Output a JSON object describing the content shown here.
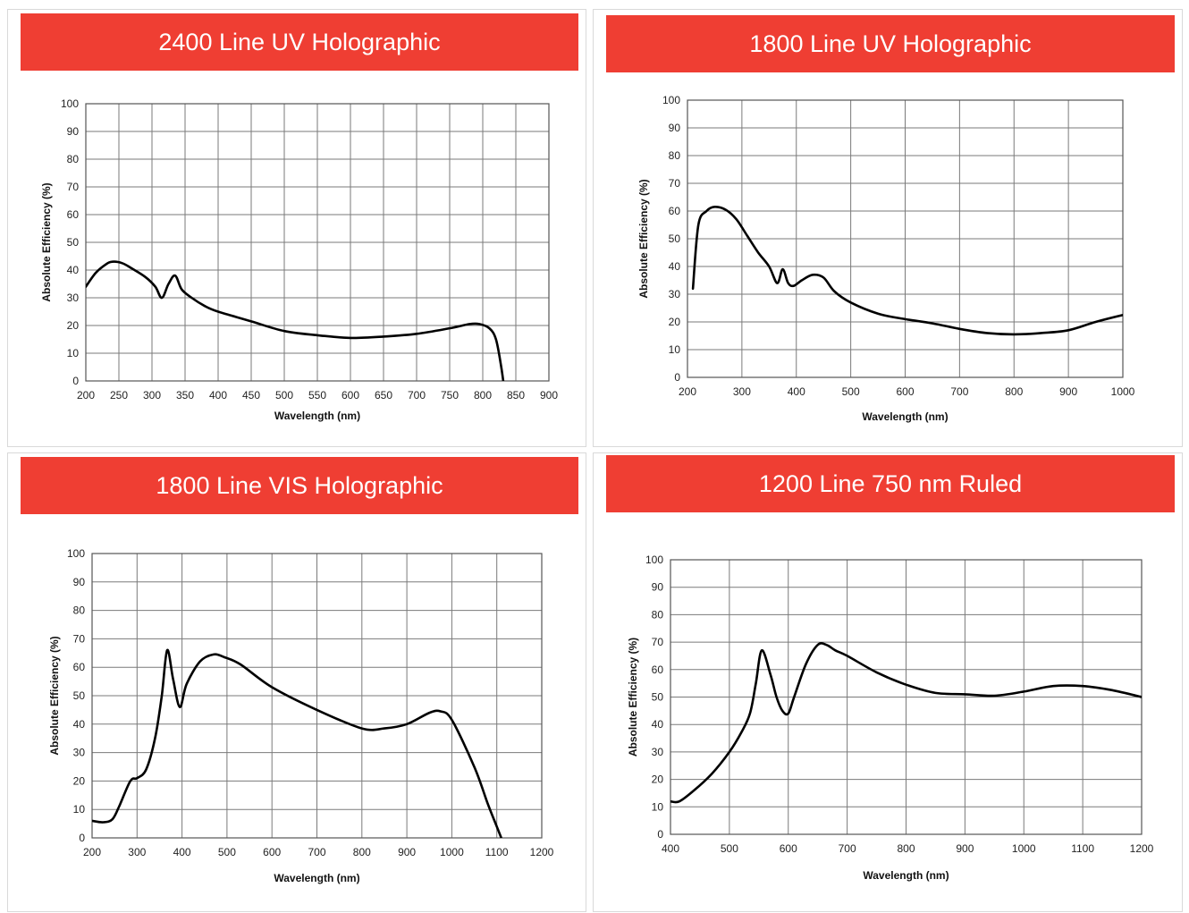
{
  "colors": {
    "banner": "#ef3e33",
    "grid": "#7a7a7a",
    "curve": "#000000"
  },
  "chart_data": [
    {
      "type": "line",
      "title": "2400 Line UV Holographic",
      "xlabel": "Wavelength (nm)",
      "ylabel": "Absolute Efficiency (%)",
      "xlim": [
        200,
        900
      ],
      "ylim": [
        0,
        100
      ],
      "xticks": [
        200,
        250,
        300,
        350,
        400,
        450,
        500,
        550,
        600,
        650,
        700,
        750,
        800,
        850,
        900
      ],
      "yticks": [
        0,
        10,
        20,
        30,
        40,
        50,
        60,
        70,
        80,
        90,
        100
      ],
      "grid": true,
      "series": [
        {
          "x": [
            200,
            215,
            230,
            240,
            255,
            270,
            290,
            305,
            315,
            325,
            335,
            345,
            360,
            380,
            400,
            450,
            500,
            550,
            600,
            650,
            700,
            750,
            780,
            795,
            810,
            820,
            828,
            833,
            836
          ],
          "y": [
            34,
            39,
            42,
            43,
            42.5,
            40.5,
            37.5,
            34,
            30,
            35,
            38,
            33,
            30,
            27,
            25,
            21.5,
            18,
            16.5,
            15.5,
            16,
            17,
            19,
            20.5,
            20.5,
            19,
            15,
            5,
            -4,
            -12
          ]
        }
      ]
    },
    {
      "type": "line",
      "title": "1800 Line UV Holographic",
      "xlabel": "Wavelength (nm)",
      "ylabel": "Absolute Efficiency (%)",
      "xlim": [
        200,
        1000
      ],
      "ylim": [
        0,
        100
      ],
      "xticks": [
        200,
        300,
        400,
        500,
        600,
        700,
        800,
        900,
        1000
      ],
      "yticks": [
        0,
        10,
        20,
        30,
        40,
        50,
        60,
        70,
        80,
        90,
        100
      ],
      "grid": true,
      "series": [
        {
          "x": [
            210,
            220,
            235,
            250,
            270,
            290,
            310,
            330,
            350,
            365,
            375,
            385,
            395,
            410,
            430,
            450,
            470,
            500,
            550,
            600,
            650,
            700,
            750,
            800,
            850,
            900,
            950,
            1000
          ],
          "y": [
            32,
            55,
            60,
            61.5,
            60.5,
            57,
            51,
            45,
            40,
            34,
            39,
            34,
            33,
            35,
            37,
            36,
            31,
            27,
            23,
            21,
            19.5,
            17.5,
            16,
            15.5,
            16,
            17,
            20,
            22.5
          ]
        }
      ]
    },
    {
      "type": "line",
      "title": "1800 Line VIS Holographic",
      "xlabel": "Wavelength (nm)",
      "ylabel": "Absolute Efficiency (%)",
      "xlim": [
        200,
        1200
      ],
      "ylim": [
        0,
        100
      ],
      "xticks": [
        200,
        300,
        400,
        500,
        600,
        700,
        800,
        900,
        1000,
        1100,
        1200
      ],
      "yticks": [
        0,
        10,
        20,
        30,
        40,
        50,
        60,
        70,
        80,
        90,
        100
      ],
      "grid": true,
      "series": [
        {
          "x": [
            200,
            225,
            245,
            260,
            285,
            300,
            320,
            340,
            355,
            367,
            380,
            395,
            410,
            440,
            470,
            495,
            530,
            600,
            700,
            800,
            850,
            900,
            950,
            975,
            1000,
            1050,
            1080,
            1100,
            1110
          ],
          "y": [
            6,
            5.5,
            6.5,
            11,
            20,
            21,
            24,
            35,
            50,
            66,
            56,
            46,
            54,
            62,
            64.5,
            63.5,
            61,
            53,
            45,
            38.5,
            38.5,
            40,
            44,
            44.5,
            41.5,
            25,
            12,
            4,
            0
          ]
        }
      ]
    },
    {
      "type": "line",
      "title": "1200 Line 750 nm Ruled",
      "xlabel": "Wavelength (nm)",
      "ylabel": "Absolute Efficiency (%)",
      "xlim": [
        400,
        1200
      ],
      "ylim": [
        0,
        100
      ],
      "xticks": [
        400,
        500,
        600,
        700,
        800,
        900,
        1000,
        1100,
        1200
      ],
      "yticks": [
        0,
        10,
        20,
        30,
        40,
        50,
        60,
        70,
        80,
        90,
        100
      ],
      "grid": true,
      "series": [
        {
          "x": [
            400,
            415,
            440,
            470,
            500,
            520,
            535,
            545,
            555,
            570,
            580,
            590,
            600,
            610,
            630,
            650,
            665,
            680,
            700,
            750,
            800,
            850,
            900,
            950,
            1000,
            1050,
            1100,
            1150,
            1200
          ],
          "y": [
            12,
            12,
            16,
            22,
            30,
            37,
            44,
            55,
            67,
            58,
            50,
            45,
            44,
            50,
            62,
            69,
            69,
            67,
            65,
            59,
            54.5,
            51.5,
            51,
            50.5,
            52,
            54,
            54,
            52.5,
            50
          ]
        }
      ]
    }
  ]
}
